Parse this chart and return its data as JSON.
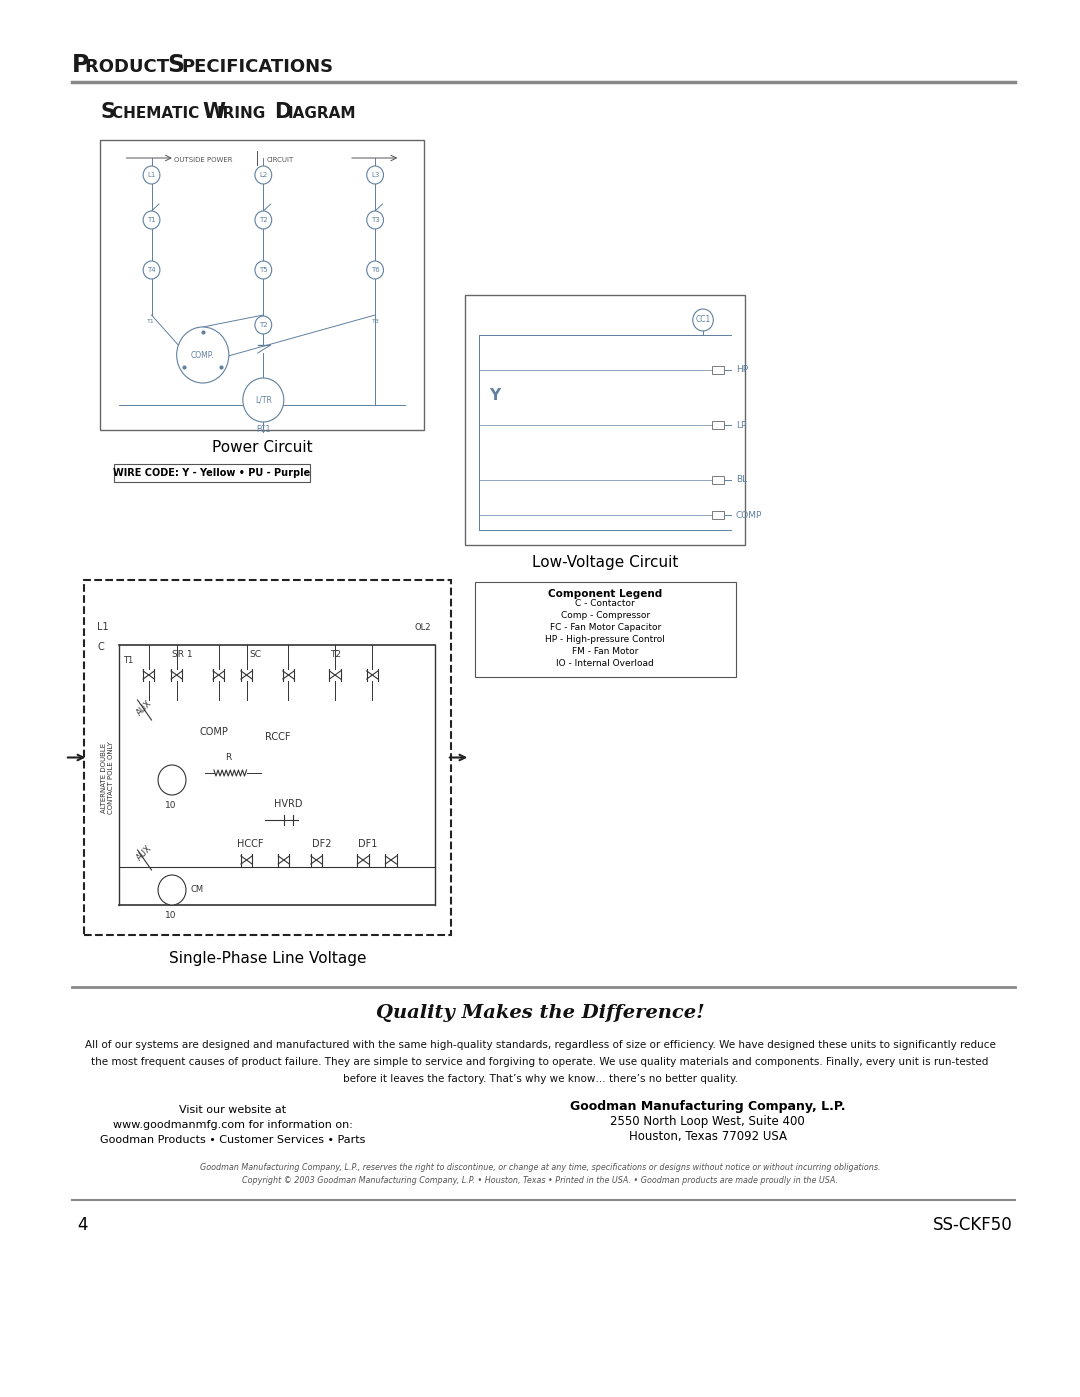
{
  "page_bg": "#ffffff",
  "title_product": "Product Specifications",
  "title_schematic": "Schematic Wiring Diagram",
  "caption_power": "Power Circuit",
  "wire_code_label": "WIRE CODE: Y - Yellow • PU - Purple",
  "caption_low_voltage": "Low-Voltage Circuit",
  "caption_single_phase": "Single-Phase Line Voltage",
  "quality_tagline": "Quality Makes the Difference!",
  "quality_body1": "All of our systems are designed and manufactured with the same high-quality standards, regardless of size or efficiency. We have designed these units to significantly reduce",
  "quality_body2": "the most frequent causes of product failure. They are simple to service and forgiving to operate. We use quality materials and components. Finally, every unit is run-tested",
  "quality_body3": "before it leaves the factory. That’s why we know… there’s no better quality.",
  "visit_left1": "Visit our website at",
  "visit_left2": "www.goodmanmfg.com for information on:",
  "visit_left3": "Goodman Products • Customer Services • Parts",
  "company_right1": "Goodman Manufacturing Company, L.P.",
  "company_right2": "2550 North Loop West, Suite 400",
  "company_right3": "Houston, Texas 77092 USA",
  "legal1": "Goodman Manufacturing Company, L.P., reserves the right to discontinue, or change at any time, specifications or designs without notice or without incurring obligations.",
  "legal2": "Copyright © 2003 Goodman Manufacturing Company, L.P. • Houston, Texas • Printed in the USA. • Goodman products are made proudly in the USA.",
  "page_num": "4",
  "model_num": "SS-CKF50",
  "legend_title": "Component Legend",
  "legend_lines": [
    "C - Contactor",
    "Comp - Compressor",
    "FC - Fan Motor Capacitor",
    "HP - High-pressure Control",
    "FM - Fan Motor",
    "IO - Internal Overload"
  ]
}
